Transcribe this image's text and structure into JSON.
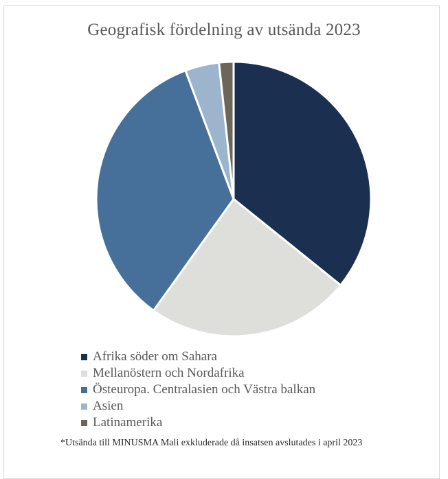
{
  "chart_data": {
    "type": "pie",
    "title": "Geografisk fördelning av utsända 2023",
    "slices": [
      {
        "label": "Afrika söder om Sahara",
        "value": 35.8,
        "color": "#1b2f50"
      },
      {
        "label": "Mellanöstern och Nordafrika",
        "value": 24.1,
        "color": "#dededb"
      },
      {
        "label": "Östeuropa. Centralasien och Västra balkan",
        "value": 34.4,
        "color": "#46709a"
      },
      {
        "label": "Asien",
        "value": 4.0,
        "color": "#9db5cc"
      },
      {
        "label": "Latinamerika",
        "value": 1.7,
        "color": "#6b6659"
      }
    ],
    "legend_position": "bottom"
  },
  "footnote": "*Utsända till MINUSMA Mali exkluderade då insatsen avslutades i april 2023"
}
